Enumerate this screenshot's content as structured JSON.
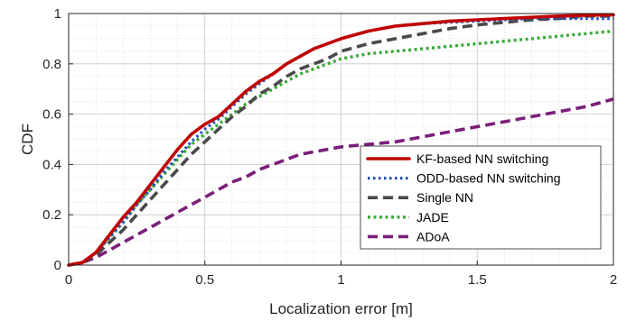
{
  "chart_data": {
    "type": "line",
    "title": "",
    "xlabel": "Localization error [m]",
    "ylabel": "CDF",
    "xlim": [
      0,
      2
    ],
    "ylim": [
      0,
      1
    ],
    "xticks": [
      0,
      0.5,
      1,
      1.5,
      2
    ],
    "yticks": [
      0,
      0.2,
      0.4,
      0.6,
      0.8,
      1
    ],
    "xtick_labels": [
      "0",
      "0.5",
      "1",
      "1.5",
      "2"
    ],
    "ytick_labels": [
      "0",
      "0.2",
      "0.4",
      "0.6",
      "0.8",
      "1"
    ],
    "grid": true,
    "minor_grid": true,
    "legend_position": "bottom-right",
    "series": [
      {
        "name": "KF-based NN switching",
        "color": "#c00000",
        "style": "solid",
        "x": [
          0,
          0.05,
          0.1,
          0.15,
          0.2,
          0.25,
          0.3,
          0.35,
          0.4,
          0.45,
          0.5,
          0.55,
          0.6,
          0.65,
          0.7,
          0.75,
          0.8,
          0.85,
          0.9,
          0.95,
          1.0,
          1.1,
          1.2,
          1.3,
          1.4,
          1.5,
          1.6,
          1.7,
          1.8,
          1.9,
          2.0
        ],
        "y": [
          0,
          0.01,
          0.05,
          0.12,
          0.19,
          0.25,
          0.32,
          0.39,
          0.46,
          0.52,
          0.56,
          0.59,
          0.64,
          0.69,
          0.73,
          0.76,
          0.8,
          0.83,
          0.86,
          0.88,
          0.9,
          0.93,
          0.95,
          0.96,
          0.97,
          0.975,
          0.98,
          0.985,
          0.99,
          0.993,
          0.995
        ]
      },
      {
        "name": "ODD-based NN switching",
        "color": "#1f4fbf",
        "style": "dotted",
        "x": [
          0,
          0.05,
          0.1,
          0.15,
          0.2,
          0.25,
          0.3,
          0.35,
          0.4,
          0.45,
          0.5,
          0.55,
          0.6,
          0.65,
          0.7,
          0.75,
          0.8,
          0.85,
          0.9,
          0.95,
          1.0,
          1.1,
          1.2,
          1.3,
          1.4,
          1.5,
          1.6,
          1.7,
          1.8,
          1.9,
          2.0
        ],
        "y": [
          0,
          0.01,
          0.05,
          0.11,
          0.17,
          0.24,
          0.3,
          0.37,
          0.43,
          0.49,
          0.54,
          0.58,
          0.63,
          0.68,
          0.72,
          0.76,
          0.8,
          0.83,
          0.86,
          0.88,
          0.9,
          0.93,
          0.95,
          0.96,
          0.965,
          0.97,
          0.975,
          0.98,
          0.98,
          0.98,
          0.98
        ]
      },
      {
        "name": "Single NN",
        "color": "#4a4a4a",
        "style": "dashed",
        "x": [
          0,
          0.05,
          0.1,
          0.15,
          0.2,
          0.25,
          0.3,
          0.35,
          0.4,
          0.45,
          0.5,
          0.55,
          0.6,
          0.65,
          0.7,
          0.75,
          0.8,
          0.85,
          0.9,
          0.95,
          1.0,
          1.1,
          1.2,
          1.3,
          1.4,
          1.5,
          1.6,
          1.7,
          1.8,
          1.9,
          2.0
        ],
        "y": [
          0,
          0.01,
          0.04,
          0.09,
          0.14,
          0.2,
          0.26,
          0.32,
          0.38,
          0.44,
          0.49,
          0.54,
          0.59,
          0.63,
          0.68,
          0.71,
          0.75,
          0.78,
          0.8,
          0.82,
          0.85,
          0.88,
          0.9,
          0.92,
          0.94,
          0.955,
          0.965,
          0.975,
          0.98,
          0.99,
          0.99
        ]
      },
      {
        "name": "JADE",
        "color": "#3aaa35",
        "style": "dotted-heavy",
        "x": [
          0,
          0.05,
          0.1,
          0.15,
          0.2,
          0.25,
          0.3,
          0.35,
          0.4,
          0.45,
          0.5,
          0.55,
          0.6,
          0.65,
          0.7,
          0.75,
          0.8,
          0.85,
          0.9,
          0.95,
          1.0,
          1.1,
          1.2,
          1.3,
          1.4,
          1.5,
          1.6,
          1.7,
          1.8,
          1.9,
          2.0
        ],
        "y": [
          0,
          0.01,
          0.05,
          0.11,
          0.17,
          0.24,
          0.3,
          0.36,
          0.42,
          0.48,
          0.52,
          0.56,
          0.6,
          0.64,
          0.67,
          0.7,
          0.73,
          0.76,
          0.78,
          0.8,
          0.82,
          0.84,
          0.85,
          0.86,
          0.87,
          0.88,
          0.89,
          0.9,
          0.91,
          0.92,
          0.93
        ]
      },
      {
        "name": "ADoA",
        "color": "#7a1f7a",
        "style": "dashed",
        "x": [
          0,
          0.05,
          0.1,
          0.15,
          0.2,
          0.25,
          0.3,
          0.35,
          0.4,
          0.45,
          0.5,
          0.55,
          0.6,
          0.65,
          0.7,
          0.75,
          0.8,
          0.85,
          0.9,
          0.95,
          1.0,
          1.1,
          1.2,
          1.3,
          1.4,
          1.5,
          1.6,
          1.7,
          1.8,
          1.9,
          2.0
        ],
        "y": [
          0,
          0.01,
          0.03,
          0.06,
          0.09,
          0.12,
          0.15,
          0.18,
          0.21,
          0.24,
          0.27,
          0.3,
          0.33,
          0.35,
          0.38,
          0.4,
          0.42,
          0.44,
          0.45,
          0.46,
          0.47,
          0.48,
          0.49,
          0.51,
          0.53,
          0.55,
          0.57,
          0.59,
          0.61,
          0.63,
          0.66
        ]
      }
    ]
  }
}
